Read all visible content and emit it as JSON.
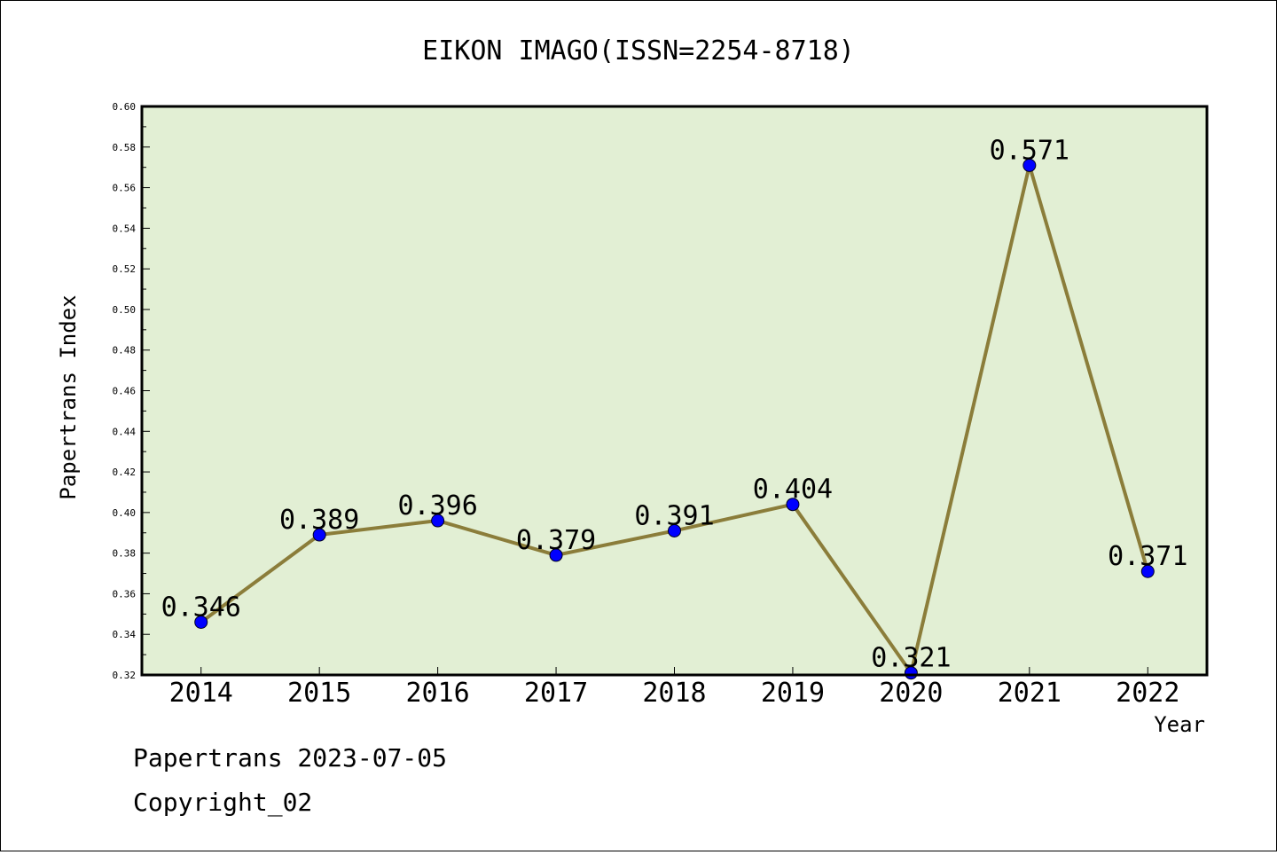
{
  "chart_data": {
    "type": "line",
    "title": "EIKON IMAGO(ISSN=2254-8718)",
    "xlabel": "Year",
    "ylabel": "Papertrans Index",
    "categories": [
      "2014",
      "2015",
      "2016",
      "2017",
      "2018",
      "2019",
      "2020",
      "2021",
      "2022"
    ],
    "series": [
      {
        "values": [
          0.346,
          0.389,
          0.396,
          0.379,
          0.391,
          0.404,
          0.321,
          0.571,
          0.371
        ]
      }
    ],
    "data_labels": [
      "0.346",
      "0.389",
      "0.396",
      "0.379",
      "0.391",
      "0.404",
      "0.321",
      "0.571",
      "0.371"
    ],
    "ylim": [
      0.32,
      0.6
    ],
    "yticks": [
      "0.32",
      "0.34",
      "0.36",
      "0.38",
      "0.40",
      "0.42",
      "0.44",
      "0.46",
      "0.48",
      "0.50",
      "0.52",
      "0.54",
      "0.56",
      "0.58",
      "0.60"
    ],
    "grid": false,
    "legend": "none",
    "colors": {
      "plot_background": "#e2efd4",
      "line": "#8b7d3a",
      "marker": "#0000ff"
    }
  },
  "footer": {
    "line1": "Papertrans 2023-07-05",
    "line2": "Copyright_02"
  }
}
